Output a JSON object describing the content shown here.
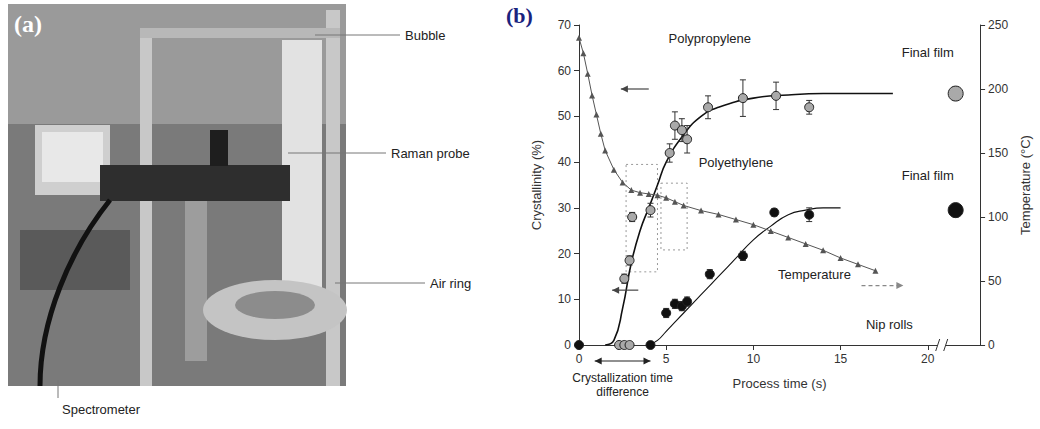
{
  "photo_panel": {
    "letter": "(a)",
    "labels": {
      "bubble": "Bubble",
      "probe": "Raman probe",
      "air_ring": "Air ring",
      "spectrometer": "Spectrometer"
    }
  },
  "chart_data": {
    "type": "scatter",
    "letter": "(b)",
    "x_label": "Process time (s)",
    "y_label": "Crystallinity (%)",
    "y2_label": "Temperature (°C)",
    "xlim": [
      0,
      23
    ],
    "xticks": [
      0,
      5,
      10,
      15,
      20
    ],
    "ylim": [
      0,
      70
    ],
    "yticks": [
      0,
      10,
      20,
      30,
      40,
      50,
      60,
      70
    ],
    "y2lim": [
      0,
      250
    ],
    "y2ticks": [
      0,
      50,
      100,
      150,
      200,
      250
    ],
    "grid": false,
    "annotations": {
      "nip_rolls": "Nip rolls",
      "time_difference": "Crystallization time difference"
    },
    "series": [
      {
        "name": "Polypropylene",
        "type": "scatter",
        "color": "#a9a9a9",
        "marker": "circle",
        "x": [
          2.3,
          2.6,
          2.9,
          2.6,
          2.9,
          3.05,
          4.1,
          5.2,
          5.5,
          5.9,
          6.2,
          7.4,
          9.4,
          11.3,
          13.2
        ],
        "values": [
          0,
          0,
          0,
          14.5,
          18.5,
          28,
          29.5,
          42,
          48,
          47,
          45,
          52,
          54,
          54.5,
          52
        ],
        "errors": [
          0,
          0,
          0,
          1,
          1,
          1,
          1.5,
          2,
          3,
          2.5,
          3,
          2.5,
          4,
          3,
          1.5
        ],
        "fit": {
          "x": [
            1.5,
            2,
            2.5,
            3,
            3.5,
            4,
            4.5,
            5,
            6,
            7,
            8,
            10,
            12,
            14,
            18
          ],
          "values": [
            0,
            1,
            8,
            18,
            25,
            30,
            35,
            40,
            46,
            50,
            52,
            54,
            54.7,
            55,
            55
          ]
        },
        "final_film": {
          "label": "Final film",
          "x": 21.6,
          "value": 55,
          "error": 1.5
        }
      },
      {
        "name": "Polyethylene",
        "type": "scatter",
        "color": "#111111",
        "marker": "circle",
        "x": [
          0,
          4.1,
          5.0,
          5.5,
          5.9,
          6.2,
          7.5,
          9.4,
          11.2,
          13.2
        ],
        "values": [
          0,
          0,
          7,
          9,
          8.5,
          9.5,
          15.5,
          19.5,
          29,
          28.5
        ],
        "errors": [
          0,
          0,
          1,
          1,
          1,
          1,
          1,
          1,
          0.8,
          1.5
        ],
        "fit": {
          "x": [
            4,
            4.5,
            5,
            6,
            7,
            8,
            9,
            10,
            11,
            12,
            13,
            14,
            15
          ],
          "values": [
            0,
            1,
            3,
            7,
            11,
            15,
            19,
            23,
            26,
            28.5,
            29.5,
            30,
            30
          ]
        },
        "final_film": {
          "label": "Final film",
          "x": 21.6,
          "value": 29.5,
          "error": 1.5
        }
      },
      {
        "name": "Temperature",
        "type": "line",
        "axis": "y2",
        "color": "#555555",
        "marker": "triangle",
        "line_style": "solid",
        "x": [
          0,
          0.25,
          0.5,
          0.75,
          1,
          1.25,
          1.5,
          2,
          2.5,
          3,
          3.5,
          4,
          4.5,
          5,
          5.5,
          6,
          7,
          8,
          9,
          10,
          11,
          12,
          13,
          14,
          15,
          16,
          17
        ],
        "values": [
          240,
          228,
          212,
          195,
          180,
          165,
          152,
          137,
          127,
          121,
          119,
          118,
          117,
          115,
          112,
          109,
          105,
          102,
          98,
          94,
          89,
          84,
          79,
          74,
          68,
          63,
          58
        ]
      }
    ]
  }
}
